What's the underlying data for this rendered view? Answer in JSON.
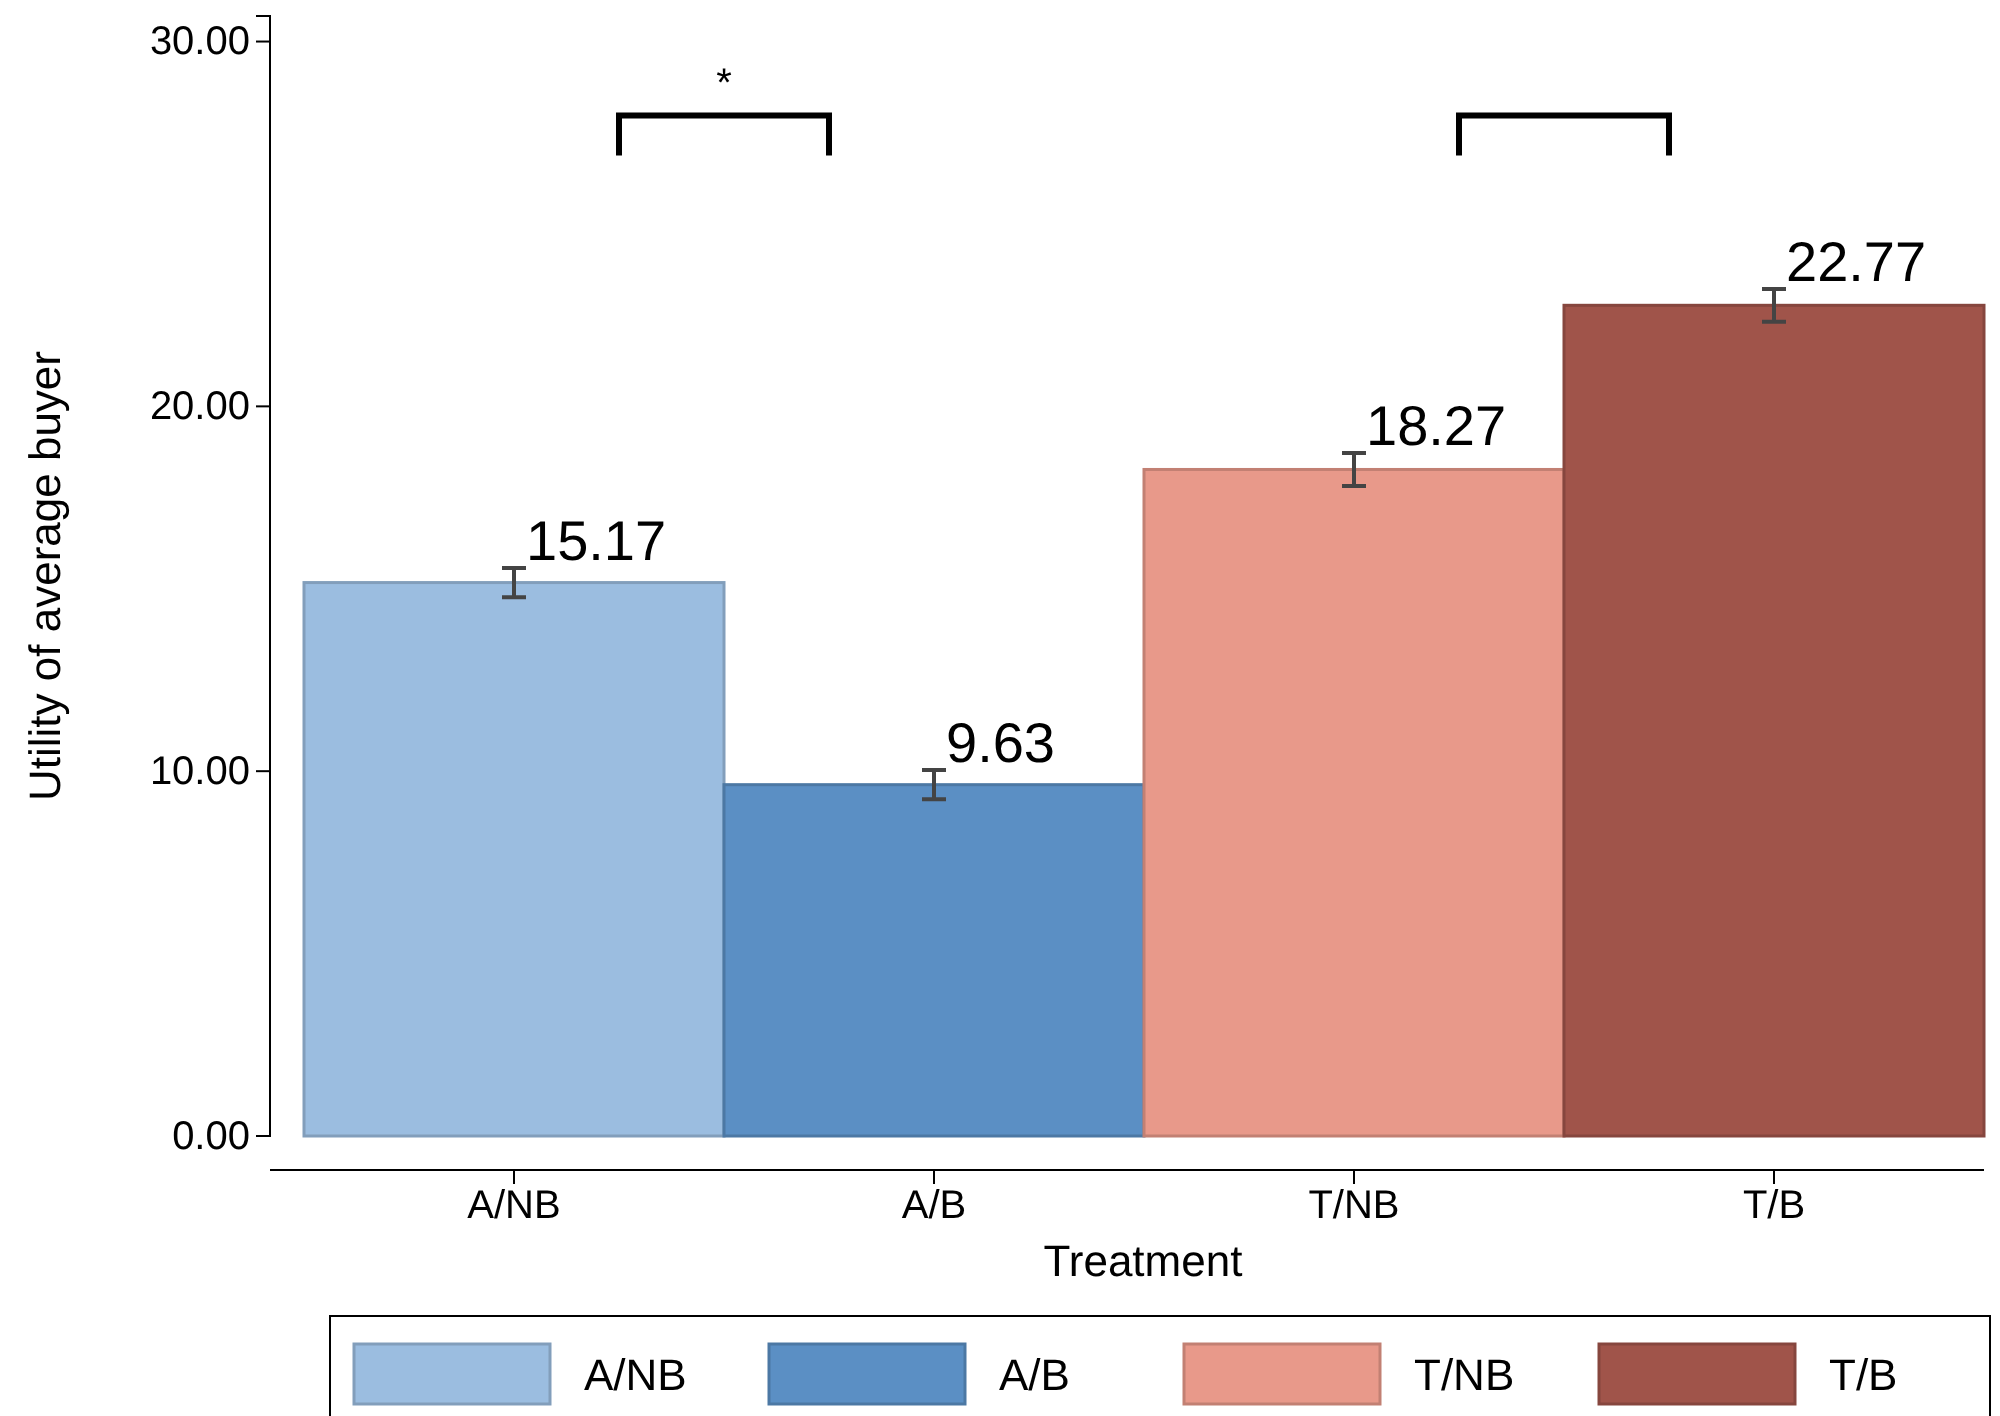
{
  "chart_data": {
    "type": "bar",
    "xlabel": "Treatment",
    "ylabel": "Utility of average buyer",
    "categories": [
      "A/NB",
      "A/B",
      "T/NB",
      "T/B"
    ],
    "series": [
      {
        "name": "A/NB",
        "color": "#9bbde0",
        "values": [
          15.17,
          null,
          null,
          null
        ],
        "errors": [
          0.4,
          null,
          null,
          null
        ]
      },
      {
        "name": "A/B",
        "color": "#5b8fc4",
        "values": [
          null,
          9.63,
          null,
          null
        ],
        "errors": [
          null,
          0.4,
          null,
          null
        ]
      },
      {
        "name": "T/NB",
        "color": "#e8998a",
        "values": [
          null,
          null,
          18.27,
          null
        ],
        "errors": [
          null,
          null,
          0.45,
          null
        ]
      },
      {
        "name": "T/B",
        "color": "#a0544a",
        "values": [
          null,
          null,
          null,
          22.77
        ],
        "errors": [
          null,
          null,
          null,
          0.45
        ]
      }
    ],
    "ylim": [
      0,
      30.7
    ],
    "yticks": [
      {
        "value": 0,
        "label": "0.00"
      },
      {
        "value": 10,
        "label": "10.00"
      },
      {
        "value": 20,
        "label": "20.00"
      },
      {
        "value": 30,
        "label": "30.00"
      }
    ],
    "data_labels": true,
    "legend": "bottom",
    "grid": false,
    "annotations": [
      "*"
    ]
  }
}
